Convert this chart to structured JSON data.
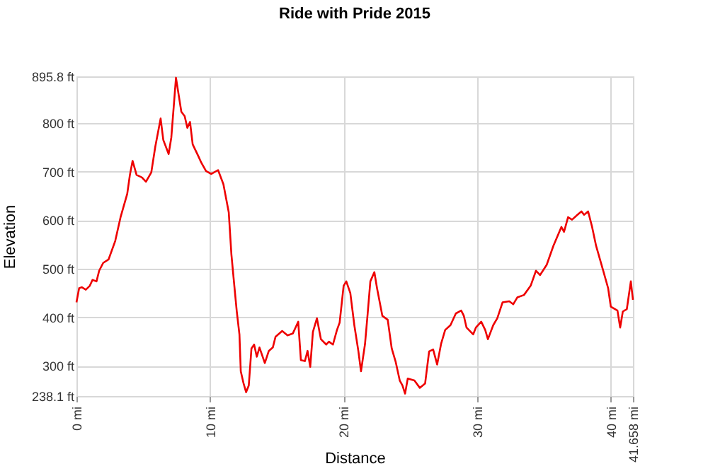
{
  "chart_data": {
    "type": "line",
    "title": "Ride with Pride 2015",
    "xlabel": "Distance",
    "ylabel": "Elevation",
    "xlim": [
      0,
      41.658
    ],
    "ylim": [
      238.1,
      895.8
    ],
    "xticks": [
      {
        "value": 0,
        "label": "0 mi"
      },
      {
        "value": 10,
        "label": "10 mi"
      },
      {
        "value": 20,
        "label": "20 mi"
      },
      {
        "value": 30,
        "label": "30 mi"
      },
      {
        "value": 40,
        "label": "40 mi"
      },
      {
        "value": 41.658,
        "label": "41.658 mi"
      }
    ],
    "yticks": [
      {
        "value": 238.1,
        "label": "238.1 ft"
      },
      {
        "value": 300,
        "label": "300 ft"
      },
      {
        "value": 400,
        "label": "400 ft"
      },
      {
        "value": 500,
        "label": "500 ft"
      },
      {
        "value": 600,
        "label": "600 ft"
      },
      {
        "value": 700,
        "label": "700 ft"
      },
      {
        "value": 800,
        "label": "800 ft"
      },
      {
        "value": 895.8,
        "label": "895.8 ft"
      }
    ],
    "grid": true,
    "marker": "none",
    "line_style": "solid",
    "series": [
      {
        "color": "#ee0000",
        "x": [
          0,
          0.2,
          0.4,
          0.7,
          1.0,
          1.2,
          1.5,
          1.7,
          2.0,
          2.4,
          2.9,
          3.3,
          3.8,
          4.0,
          4.2,
          4.5,
          4.9,
          5.2,
          5.6,
          5.9,
          6.3,
          6.5,
          6.9,
          7.1,
          7.45,
          7.85,
          8.1,
          8.3,
          8.5,
          8.7,
          9.1,
          9.35,
          9.7,
          10.1,
          10.6,
          11.0,
          11.4,
          11.6,
          11.8,
          12.0,
          12.2,
          12.3,
          12.5,
          12.7,
          12.9,
          13.1,
          13.3,
          13.5,
          13.7,
          14.1,
          14.4,
          14.7,
          14.9,
          15.4,
          15.8,
          16.2,
          16.6,
          16.8,
          17.1,
          17.3,
          17.5,
          17.7,
          18.0,
          18.3,
          18.7,
          18.9,
          19.2,
          19.5,
          19.7,
          20.0,
          20.2,
          20.5,
          20.8,
          21.1,
          21.3,
          21.6,
          21.8,
          22.0,
          22.3,
          22.5,
          22.9,
          23.3,
          23.6,
          23.9,
          24.2,
          24.4,
          24.6,
          24.8,
          25.3,
          25.7,
          26.1,
          26.4,
          26.7,
          27.0,
          27.3,
          27.6,
          28.0,
          28.4,
          28.8,
          29.0,
          29.2,
          29.7,
          29.9,
          30.3,
          30.6,
          30.8,
          31.2,
          31.5,
          31.9,
          32.4,
          32.7,
          33.0,
          33.5,
          34.0,
          34.4,
          34.7,
          35.2,
          35.7,
          36.3,
          36.5,
          36.8,
          37.1,
          37.5,
          37.8,
          38.0,
          38.3,
          38.6,
          38.9,
          39.4,
          39.8,
          40.0,
          40.5,
          40.7,
          40.9,
          41.2,
          41.5,
          41.658
        ],
        "values": [
          431,
          460,
          462,
          457,
          465,
          477,
          474,
          496,
          512,
          519,
          557,
          606,
          654,
          693,
          722,
          693,
          688,
          679,
          698,
          751,
          809,
          765,
          736,
          770,
          893,
          823,
          814,
          790,
          802,
          756,
          733,
          718,
          701,
          695,
          703,
          674,
          616,
          529,
          470,
          412,
          365,
          289,
          265,
          246,
          260,
          336,
          344,
          319,
          338,
          306,
          331,
          338,
          360,
          372,
          363,
          367,
          391,
          312,
          310,
          331,
          298,
          370,
          398,
          355,
          344,
          350,
          344,
          374,
          389,
          465,
          474,
          450,
          384,
          331,
          289,
          345,
          408,
          474,
          493,
          460,
          403,
          395,
          336,
          308,
          270,
          260,
          243,
          274,
          270,
          255,
          264,
          330,
          334,
          303,
          346,
          374,
          384,
          408,
          414,
          403,
          379,
          365,
          379,
          391,
          374,
          355,
          384,
          398,
          431,
          433,
          427,
          441,
          446,
          465,
          496,
          487,
          508,
          547,
          586,
          576,
          606,
          601,
          611,
          618,
          611,
          618,
          586,
          547,
          499,
          460,
          422,
          414,
          379,
          412,
          417,
          474,
          436
        ]
      }
    ]
  }
}
